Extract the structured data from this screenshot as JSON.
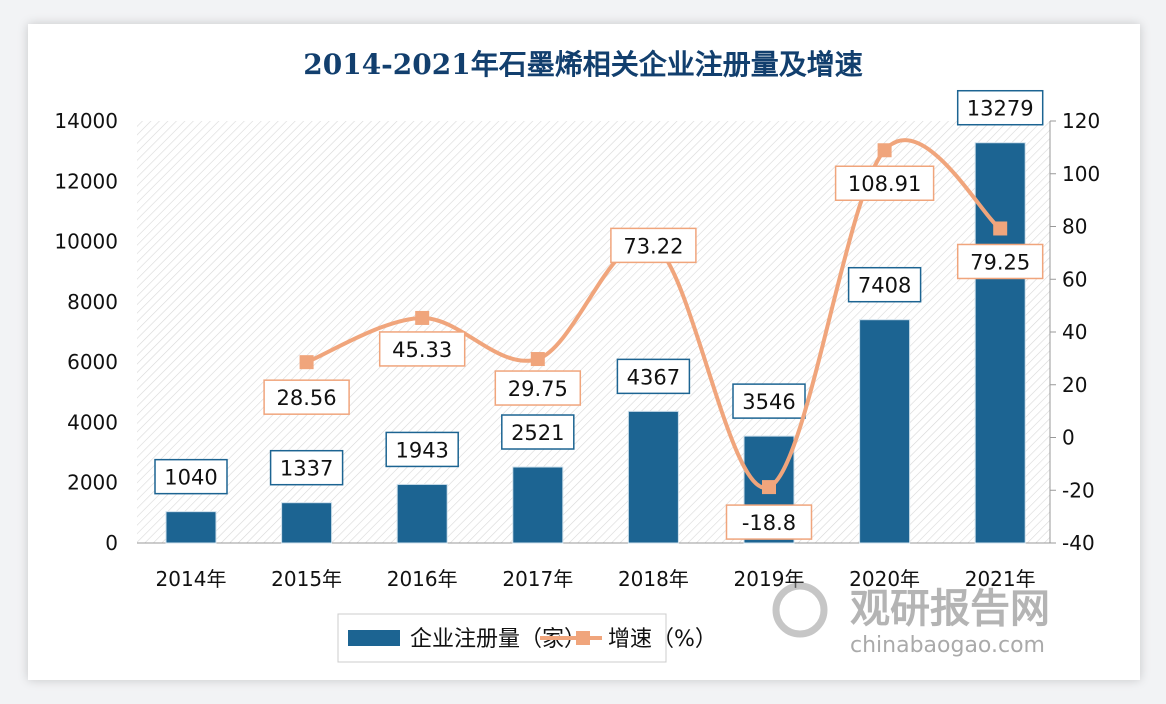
{
  "chart_data": {
    "type": "bar+line",
    "title": "2014-2021年石墨烯相关企业注册量及增速",
    "categories": [
      "2014年",
      "2015年",
      "2016年",
      "2017年",
      "2018年",
      "2019年",
      "2020年",
      "2021年"
    ],
    "series": [
      {
        "name": "企业注册量（家）",
        "type": "bar",
        "axis": "left",
        "values": [
          1040,
          1337,
          1943,
          2521,
          4367,
          3546,
          7408,
          13279
        ],
        "labels": [
          "1040",
          "1337",
          "1943",
          "2521",
          "4367",
          "3546",
          "7408",
          "13279"
        ],
        "color": "#1c6492"
      },
      {
        "name": "增速（%）",
        "type": "line",
        "axis": "right",
        "values": [
          null,
          28.56,
          45.33,
          29.75,
          73.22,
          -18.8,
          108.91,
          79.25
        ],
        "labels": [
          "",
          "28.56",
          "45.33",
          "29.75",
          "73.22",
          "-18.8",
          "108.91",
          "79.25"
        ],
        "color": "#f0a57c"
      }
    ],
    "ylim_left": [
      0,
      14000
    ],
    "yticks_left": [
      "0",
      "2000",
      "4000",
      "6000",
      "8000",
      "10000",
      "12000",
      "14000"
    ],
    "ylim_right": [
      -40,
      120
    ],
    "yticks_right": [
      "-40",
      "-20",
      "0",
      "20",
      "40",
      "60",
      "80",
      "100",
      "120"
    ],
    "legend": "bottom",
    "grid": false
  },
  "watermark": {
    "text": "观研报告网",
    "url_text": "chinabaogao.com"
  }
}
